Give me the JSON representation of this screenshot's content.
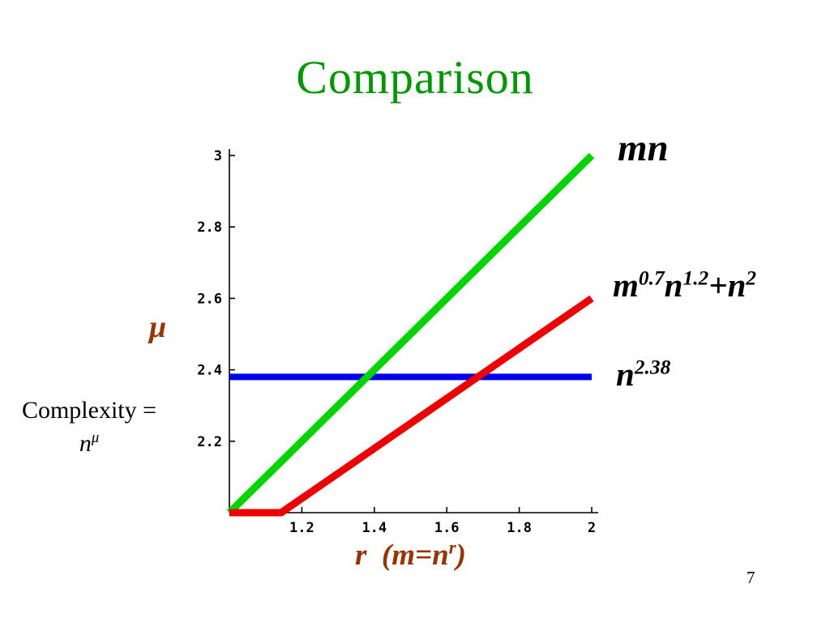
{
  "slide": {
    "title": "Comparison",
    "title_color": "#009a00",
    "page_number": "7"
  },
  "annotations": {
    "accent_color": "#993300",
    "y_axis_symbol": "μ",
    "complexity_line1": "Complexity =",
    "complexity_line2": [
      {
        "t": "n"
      },
      {
        "t": "μ",
        "sup": true
      }
    ],
    "x_axis_label": [
      {
        "t": "r  (m=n"
      },
      {
        "t": "r",
        "sup": true
      },
      {
        "t": ")"
      }
    ]
  },
  "curve_labels": {
    "green": [
      {
        "t": "mn"
      }
    ],
    "red": [
      {
        "t": "m"
      },
      {
        "t": "0.7",
        "sup": true
      },
      {
        "t": "n"
      },
      {
        "t": "1.2",
        "sup": true
      },
      {
        "t": "+n"
      },
      {
        "t": "2",
        "sup": true
      }
    ],
    "blue": [
      {
        "t": "n"
      },
      {
        "t": "2.38",
        "sup": true
      }
    ]
  },
  "chart_data": {
    "type": "line",
    "title": "Comparison",
    "xlabel": "r (m=n^r)",
    "ylabel": "μ  (Complexity = n^μ)",
    "xlim": [
      1,
      2
    ],
    "ylim": [
      2,
      3
    ],
    "grid": false,
    "x_ticks": [
      "1.2",
      "1.4",
      "1.6",
      "1.8",
      "2"
    ],
    "y_ticks": [
      "2.2",
      "2.4",
      "2.6",
      "2.8",
      "3"
    ],
    "legend_position": "right",
    "series": [
      {
        "key": "mn",
        "name": "mn",
        "color": "#00d500",
        "width": 9,
        "z": 2,
        "points": [
          [
            1,
            2
          ],
          [
            2,
            3
          ]
        ]
      },
      {
        "key": "m07n12-plus-n2",
        "name": "m^0.7 n^1.2 + n^2",
        "color": "#ee0000",
        "width": 9,
        "z": 3,
        "points": [
          [
            1,
            2
          ],
          [
            1.143,
            2
          ],
          [
            2,
            2.6
          ]
        ]
      },
      {
        "key": "n238",
        "name": "n^2.38",
        "color": "#0000ee",
        "width": 8,
        "z": 1,
        "points": [
          [
            1,
            2.38
          ],
          [
            2,
            2.38
          ]
        ]
      }
    ]
  }
}
